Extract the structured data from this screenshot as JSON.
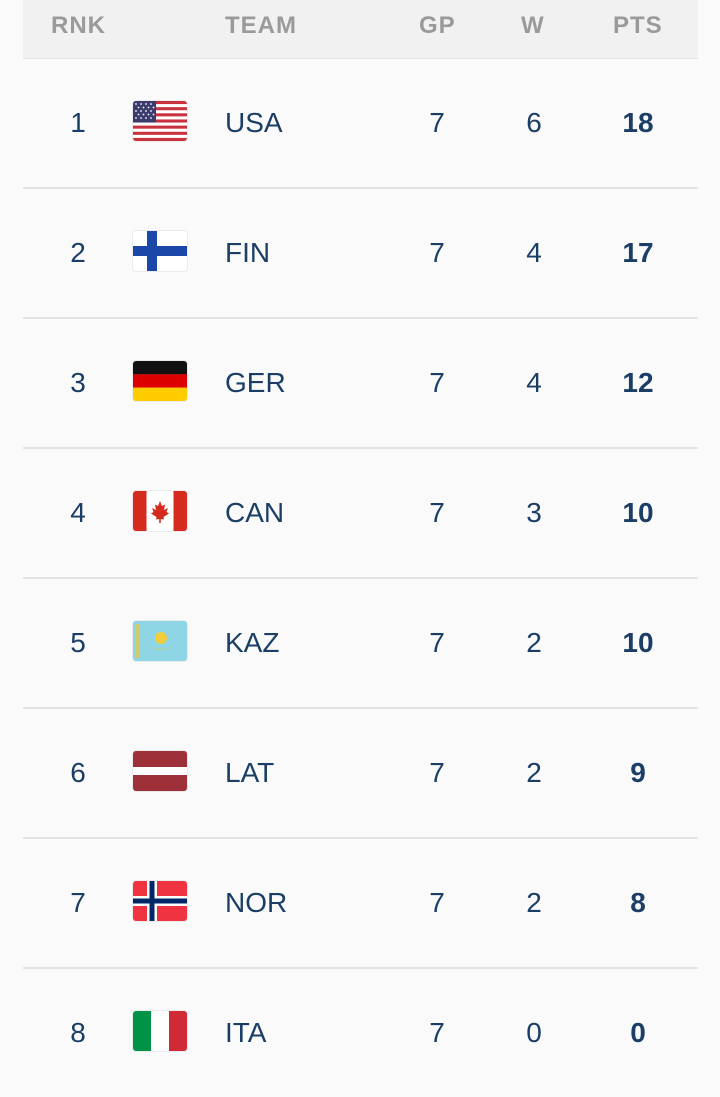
{
  "header": {
    "rank": "RNK",
    "team": "TEAM",
    "gp": "GP",
    "w": "W",
    "pts": "PTS"
  },
  "rows": [
    {
      "rank": "1",
      "team": "USA",
      "gp": "7",
      "w": "6",
      "pts": "18",
      "flag": "usa-flag-icon"
    },
    {
      "rank": "2",
      "team": "FIN",
      "gp": "7",
      "w": "4",
      "pts": "17",
      "flag": "finland-flag-icon"
    },
    {
      "rank": "3",
      "team": "GER",
      "gp": "7",
      "w": "4",
      "pts": "12",
      "flag": "germany-flag-icon"
    },
    {
      "rank": "4",
      "team": "CAN",
      "gp": "7",
      "w": "3",
      "pts": "10",
      "flag": "canada-flag-icon"
    },
    {
      "rank": "5",
      "team": "KAZ",
      "gp": "7",
      "w": "2",
      "pts": "10",
      "flag": "kazakhstan-flag-icon"
    },
    {
      "rank": "6",
      "team": "LAT",
      "gp": "7",
      "w": "2",
      "pts": "9",
      "flag": "latvia-flag-icon"
    },
    {
      "rank": "7",
      "team": "NOR",
      "gp": "7",
      "w": "2",
      "pts": "8",
      "flag": "norway-flag-icon"
    },
    {
      "rank": "8",
      "team": "ITA",
      "gp": "7",
      "w": "0",
      "pts": "0",
      "flag": "italy-flag-icon"
    }
  ],
  "colors": {
    "text": "#1b3e66",
    "header_text": "#9a9a9a",
    "header_bg": "#f1f1f1",
    "divider": "#e3e3e3"
  }
}
